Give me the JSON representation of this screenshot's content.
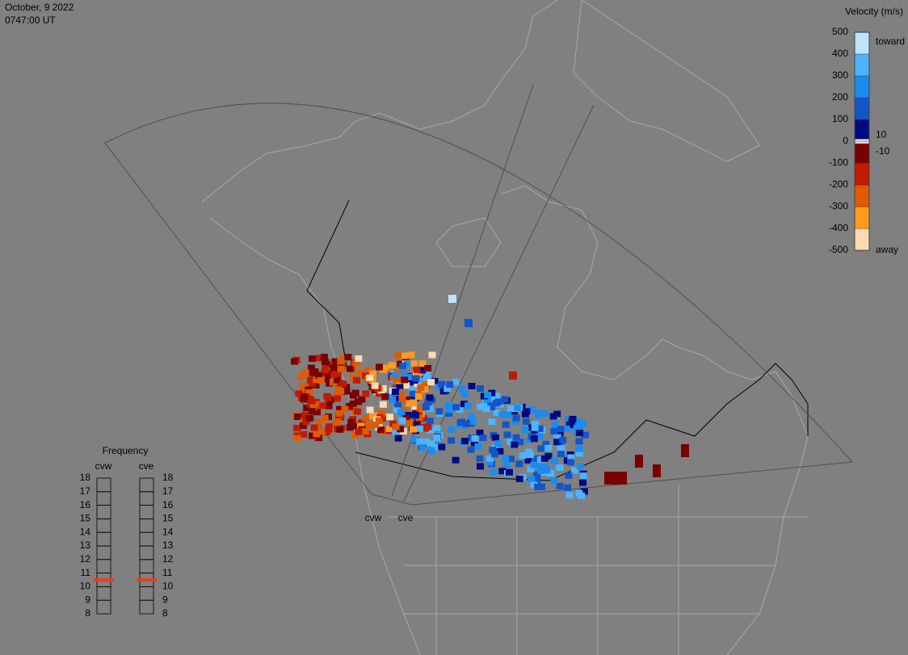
{
  "header": {
    "date": "October, 9 2022",
    "time": "0747:00 UT"
  },
  "colorbar": {
    "title": "Velocity (m/s)",
    "ticks": [
      500,
      400,
      300,
      200,
      100,
      0,
      -100,
      -200,
      -300,
      -400,
      -500
    ],
    "colors": [
      "#bfe4ff",
      "#4fb3ff",
      "#1a8cf0",
      "#1255c8",
      "#000a80",
      "#7a0000",
      "#c01a00",
      "#e05a00",
      "#ff9a20",
      "#ffd9b0"
    ],
    "inner_ticks": [
      10,
      -10
    ],
    "toward": "toward",
    "away": "away"
  },
  "frequency": {
    "title": "Frequency",
    "ticks": [
      18,
      17,
      16,
      15,
      14,
      13,
      12,
      11,
      10,
      9,
      8
    ],
    "marker_color": "#e04020",
    "radars": [
      {
        "name": "cvw",
        "value": 10.5
      },
      {
        "name": "cve",
        "value": 10.5
      }
    ]
  },
  "radar_labels": [
    "cvw",
    "cve"
  ]
}
